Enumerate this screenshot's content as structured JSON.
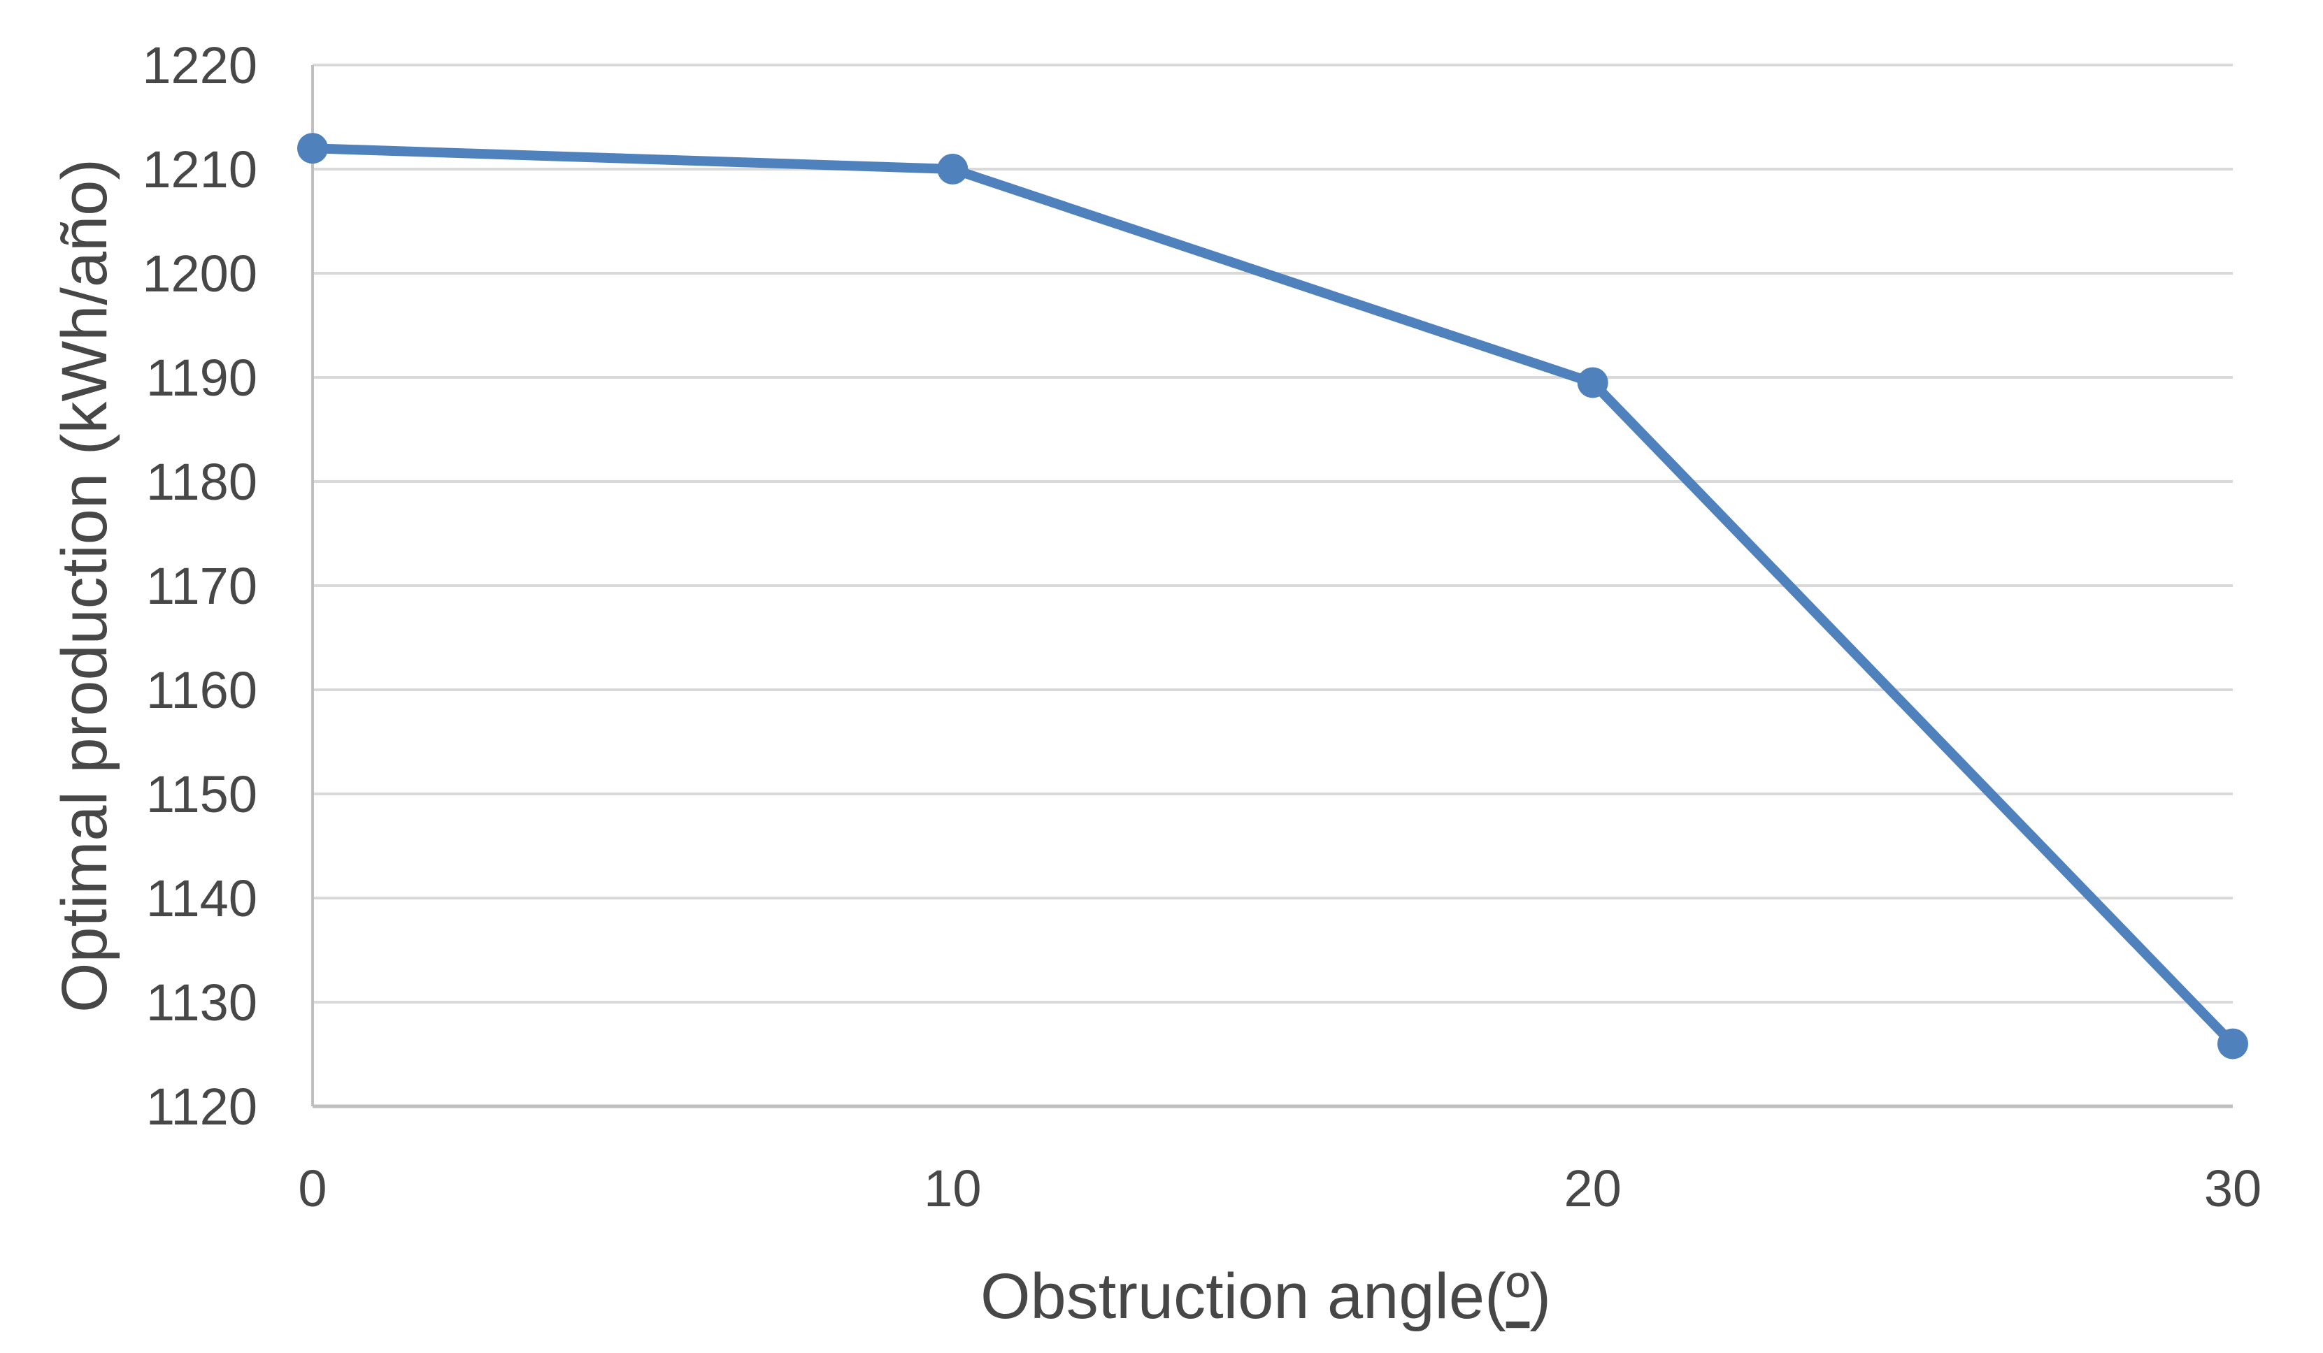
{
  "chart_data": {
    "type": "line",
    "x": [
      0,
      10,
      20,
      30
    ],
    "series": [
      {
        "name": "Optimal production",
        "values": [
          1212,
          1210,
          1189.5,
          1126
        ]
      }
    ],
    "title": "",
    "xlabel": "Obstruction angle(º)",
    "ylabel": "Optimal production (kWh/año)",
    "xlim": [
      0,
      30
    ],
    "ylim": [
      1120,
      1220
    ],
    "x_ticks": [
      0,
      10,
      20,
      30
    ],
    "y_tick_step": 10,
    "y_tick_labels": [
      "1220",
      "1210",
      "1200",
      "1190",
      "1180",
      "1170",
      "1160",
      "1150",
      "1140",
      "1130",
      "1120"
    ],
    "x_tick_labels": [
      "0",
      "10",
      "20",
      "30"
    ],
    "grid": "horizontal",
    "legend": "none",
    "marker": "circle",
    "colors": {
      "line": "#4F81BD",
      "marker": "#4F81BD",
      "gridline": "#D9D9D9",
      "axis_line": "#BFBFBF",
      "text": "#474747",
      "background": "#FFFFFF"
    }
  }
}
